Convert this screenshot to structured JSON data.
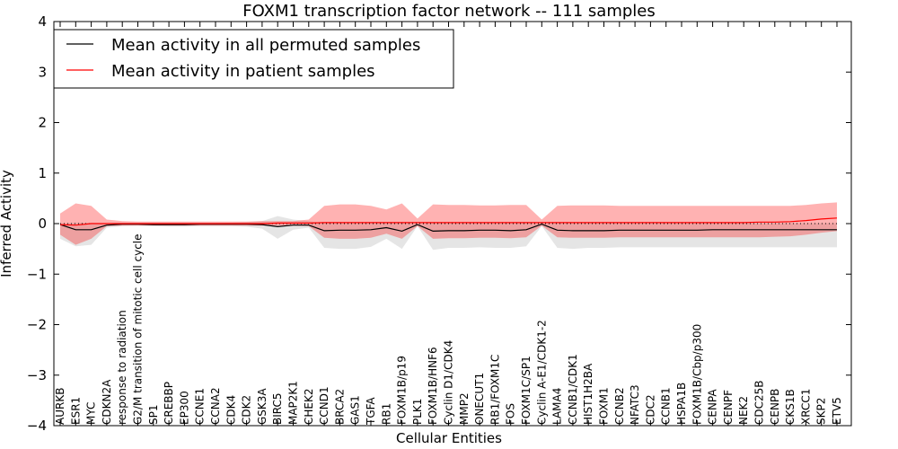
{
  "chart_data": {
    "type": "line",
    "title": "FOXM1 transcription factor network -- 111 samples",
    "xlabel": "Cellular Entities",
    "ylabel": "Inferred Activity",
    "ylim": [
      -4,
      4
    ],
    "yticks": [
      -4,
      -3,
      -2,
      -1,
      0,
      1,
      2,
      3,
      4
    ],
    "ytick_labels": [
      "−4",
      "−3",
      "−2",
      "−1",
      "0",
      "1",
      "2",
      "3",
      "4"
    ],
    "grid": false,
    "legend_position": "top-left",
    "categories": [
      "AURKB",
      "ESR1",
      "MYC",
      "CDKN2A",
      "response to radiation",
      "G2/M transition of mitotic cell cycle",
      "SP1",
      "CREBBP",
      "EP300",
      "CCNE1",
      "CCNA2",
      "CDK4",
      "CDK2",
      "GSK3A",
      "BIRC5",
      "MAP2K1",
      "CHEK2",
      "CCND1",
      "BRCA2",
      "GAS1",
      "TGFA",
      "RB1",
      "FOXM1B/p19",
      "PLK1",
      "FOXM1B/HNF6",
      "Cyclin D1/CDK4",
      "MMP2",
      "ONECUT1",
      "RB1/FOXM1C",
      "FOS",
      "FOXM1C/SP1",
      "Cyclin A-E1/CDK1-2",
      "LAMA4",
      "CCNB1/CDK1",
      "HIST1H2BA",
      "FOXM1",
      "CCNB2",
      "NFATC3",
      "CDC2",
      "CCNB1",
      "HSPA1B",
      "FOXM1B/Cbp/p300",
      "CENPA",
      "CENPF",
      "NEK2",
      "CDC25B",
      "CENPB",
      "CKS1B",
      "XRCC1",
      "SKP2",
      "ETV5"
    ],
    "series": [
      {
        "name": "Mean activity in all permuted samples",
        "color": "#000000",
        "values": [
          -0.02,
          -0.12,
          -0.12,
          -0.03,
          -0.01,
          -0.01,
          -0.02,
          -0.02,
          -0.02,
          -0.01,
          -0.01,
          -0.01,
          -0.01,
          -0.02,
          -0.06,
          -0.03,
          -0.03,
          -0.14,
          -0.13,
          -0.13,
          -0.12,
          -0.08,
          -0.15,
          -0.02,
          -0.15,
          -0.14,
          -0.14,
          -0.13,
          -0.13,
          -0.14,
          -0.12,
          -0.01,
          -0.13,
          -0.14,
          -0.14,
          -0.14,
          -0.13,
          -0.13,
          -0.13,
          -0.13,
          -0.13,
          -0.13,
          -0.12,
          -0.12,
          -0.12,
          -0.12,
          -0.12,
          -0.12,
          -0.12,
          -0.12,
          -0.12
        ],
        "band_upper": [
          0.0,
          0.02,
          0.02,
          0.01,
          0.01,
          0.01,
          0.01,
          0.01,
          0.01,
          0.01,
          0.01,
          0.02,
          0.03,
          0.05,
          0.15,
          0.08,
          0.05,
          0.01,
          0.01,
          0.01,
          0.01,
          0.01,
          0.01,
          0.0,
          0.01,
          0.01,
          0.01,
          0.01,
          0.01,
          0.01,
          0.01,
          0.0,
          0.01,
          0.01,
          0.01,
          0.01,
          0.01,
          0.01,
          0.01,
          0.01,
          0.01,
          0.01,
          0.01,
          0.01,
          0.01,
          0.01,
          0.01,
          0.01,
          0.01,
          0.01,
          0.01
        ],
        "band_lower": [
          -0.3,
          -0.45,
          -0.42,
          -0.08,
          -0.05,
          -0.04,
          -0.05,
          -0.06,
          -0.06,
          -0.05,
          -0.05,
          -0.05,
          -0.06,
          -0.1,
          -0.3,
          -0.12,
          -0.08,
          -0.48,
          -0.5,
          -0.5,
          -0.46,
          -0.3,
          -0.5,
          -0.05,
          -0.52,
          -0.48,
          -0.48,
          -0.47,
          -0.48,
          -0.48,
          -0.45,
          -0.05,
          -0.48,
          -0.5,
          -0.48,
          -0.48,
          -0.47,
          -0.47,
          -0.47,
          -0.47,
          -0.47,
          -0.47,
          -0.47,
          -0.47,
          -0.47,
          -0.47,
          -0.47,
          -0.47,
          -0.47,
          -0.47,
          -0.47
        ]
      },
      {
        "name": "Mean activity in patient samples",
        "color": "#ff0000",
        "values": [
          -0.02,
          -0.03,
          0.0,
          0.0,
          0.0,
          0.0,
          0.0,
          0.0,
          0.0,
          0.0,
          0.0,
          0.0,
          0.0,
          0.0,
          0.01,
          0.01,
          0.01,
          0.02,
          0.02,
          0.02,
          0.02,
          0.02,
          0.02,
          0.02,
          0.02,
          0.02,
          0.02,
          0.02,
          0.02,
          0.02,
          0.02,
          0.02,
          0.02,
          0.02,
          0.02,
          0.02,
          0.02,
          0.02,
          0.02,
          0.02,
          0.02,
          0.02,
          0.02,
          0.02,
          0.02,
          0.03,
          0.03,
          0.04,
          0.06,
          0.09,
          0.11
        ],
        "band_upper": [
          0.2,
          0.4,
          0.35,
          0.08,
          0.05,
          0.04,
          0.04,
          0.04,
          0.04,
          0.04,
          0.04,
          0.04,
          0.04,
          0.05,
          0.05,
          0.05,
          0.08,
          0.35,
          0.38,
          0.38,
          0.35,
          0.28,
          0.4,
          0.1,
          0.38,
          0.37,
          0.37,
          0.36,
          0.36,
          0.37,
          0.37,
          0.08,
          0.35,
          0.36,
          0.36,
          0.36,
          0.35,
          0.35,
          0.35,
          0.35,
          0.35,
          0.35,
          0.35,
          0.35,
          0.35,
          0.35,
          0.35,
          0.35,
          0.37,
          0.4,
          0.42
        ],
        "band_lower": [
          -0.22,
          -0.42,
          -0.3,
          -0.05,
          -0.04,
          -0.04,
          -0.04,
          -0.04,
          -0.04,
          -0.04,
          -0.04,
          -0.04,
          -0.04,
          -0.04,
          -0.04,
          -0.04,
          -0.05,
          -0.28,
          -0.3,
          -0.3,
          -0.28,
          -0.2,
          -0.3,
          -0.05,
          -0.3,
          -0.29,
          -0.29,
          -0.28,
          -0.28,
          -0.29,
          -0.27,
          -0.04,
          -0.27,
          -0.28,
          -0.28,
          -0.28,
          -0.27,
          -0.27,
          -0.27,
          -0.27,
          -0.27,
          -0.27,
          -0.27,
          -0.27,
          -0.27,
          -0.27,
          -0.26,
          -0.25,
          -0.22,
          -0.18,
          -0.15
        ]
      }
    ],
    "reference_line": {
      "y": 0,
      "style": "dotted",
      "color": "#000000"
    }
  }
}
